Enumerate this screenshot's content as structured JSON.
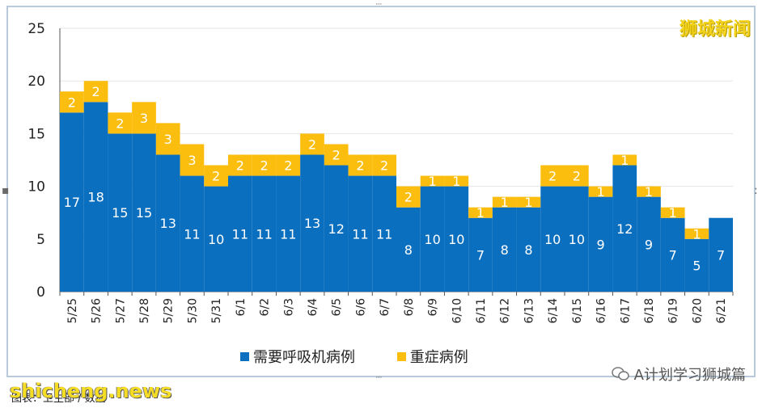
{
  "brand": "狮城新闻",
  "watermark": "shicheng.news",
  "footer_note": "图表：卫生部 / 数据",
  "wechat": "A计划学习狮城篇",
  "legend": [
    {
      "label": "需要呼吸机病例",
      "color": "#0b6fbf"
    },
    {
      "label": "重症病例",
      "color": "#fbbd0e"
    }
  ],
  "chart_data": {
    "type": "bar",
    "stacked": true,
    "categories": [
      "5/25",
      "5/26",
      "5/27",
      "5/28",
      "5/29",
      "5/30",
      "5/31",
      "6/1",
      "6/2",
      "6/3",
      "6/4",
      "6/5",
      "6/6",
      "6/7",
      "6/8",
      "6/9",
      "6/10",
      "6/11",
      "6/12",
      "6/13",
      "6/14",
      "6/15",
      "6/16",
      "6/17",
      "6/18",
      "6/19",
      "6/20",
      "6/21"
    ],
    "series": [
      {
        "name": "需要呼吸机病例",
        "color": "#0b6fbf",
        "values": [
          17,
          18,
          15,
          15,
          13,
          11,
          10,
          11,
          11,
          11,
          13,
          12,
          11,
          11,
          8,
          10,
          10,
          7,
          8,
          8,
          10,
          10,
          9,
          12,
          9,
          7,
          5,
          7
        ]
      },
      {
        "name": "重症病例",
        "color": "#fbbd0e",
        "values": [
          2,
          2,
          2,
          3,
          3,
          3,
          2,
          2,
          2,
          2,
          2,
          2,
          2,
          2,
          2,
          1,
          1,
          1,
          1,
          1,
          2,
          2,
          1,
          1,
          1,
          1,
          1,
          0
        ]
      }
    ],
    "ylim": [
      0,
      25
    ],
    "yticks": [
      0,
      5,
      10,
      15,
      20,
      25
    ],
    "title": "",
    "xlabel": "",
    "ylabel": ""
  }
}
